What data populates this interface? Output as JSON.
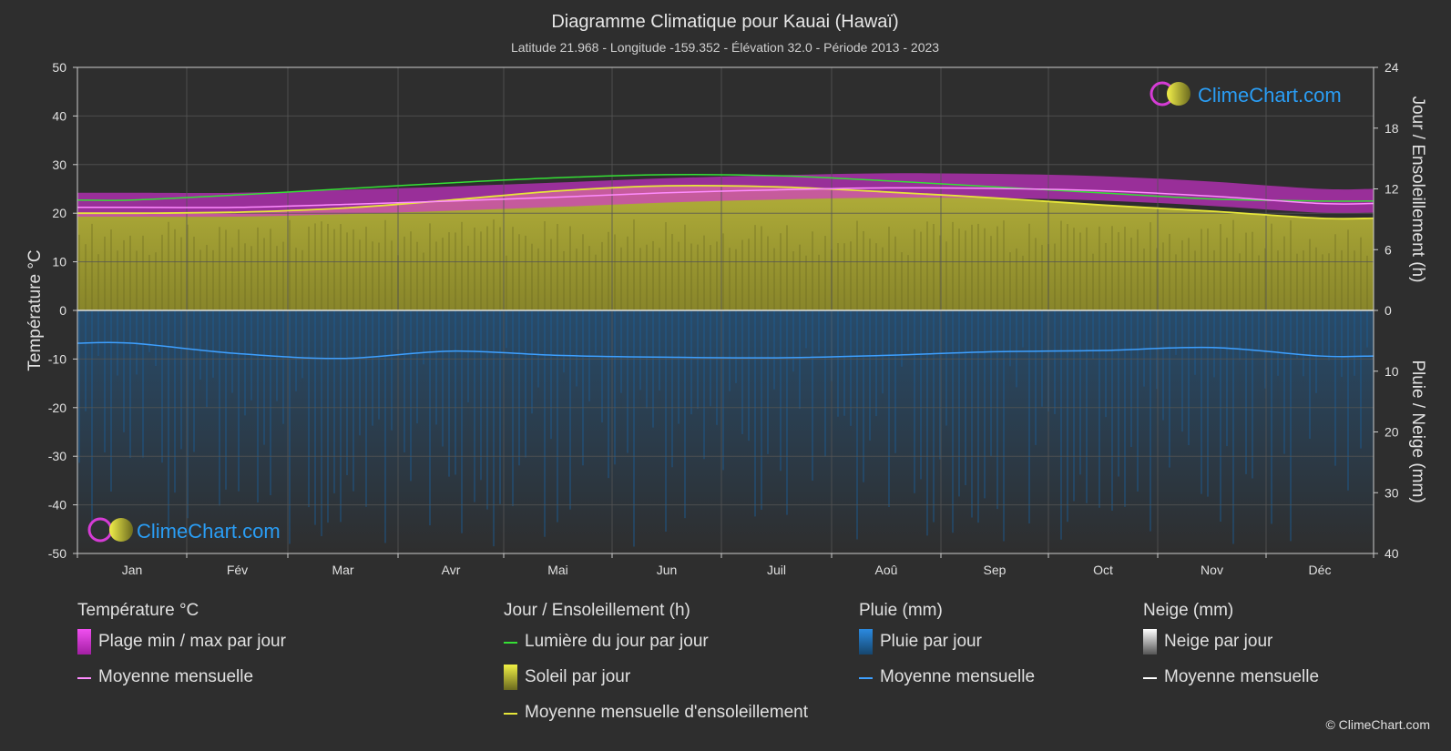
{
  "title": "Diagramme Climatique pour Kauai (Hawaï)",
  "subtitle": "Latitude 21.968 - Longitude -159.352 - Élévation 32.0 - Période 2013 - 2023",
  "watermark": "ClimeChart.com",
  "copyright": "© ClimeChart.com",
  "chart_data": {
    "type": "area",
    "categories": [
      "Jan",
      "Fév",
      "Mar",
      "Avr",
      "Mai",
      "Jun",
      "Juil",
      "Aoû",
      "Sep",
      "Oct",
      "Nov",
      "Déc"
    ],
    "y_left": {
      "label": "Température °C",
      "ylim": [
        -50,
        50
      ],
      "ticks": [
        50,
        40,
        30,
        20,
        10,
        0,
        -10,
        -20,
        -30,
        -40,
        -50
      ]
    },
    "y_right_top": {
      "label": "Jour / Ensoleillement (h)",
      "ylim": [
        0,
        24
      ],
      "ticks": [
        24,
        18,
        12,
        6,
        0
      ]
    },
    "y_right_bottom": {
      "label": "Pluie / Neige (mm)",
      "ylim": [
        0,
        40
      ],
      "ticks": [
        0,
        10,
        20,
        30,
        40
      ]
    },
    "grid": true,
    "series": [
      {
        "name": "Lumière du jour par jour",
        "unit": "h",
        "values": [
          10.9,
          11.4,
          12.0,
          12.6,
          13.1,
          13.4,
          13.3,
          12.8,
          12.2,
          11.6,
          11.0,
          10.8
        ]
      },
      {
        "name": "Moyenne mensuelle d'ensoleillement",
        "unit": "h",
        "values": [
          9.6,
          9.7,
          10.1,
          10.9,
          11.8,
          12.3,
          12.2,
          11.7,
          11.1,
          10.4,
          9.8,
          9.1
        ]
      },
      {
        "name": "Moyenne mensuelle",
        "kind": "temperature",
        "unit": "°C",
        "values": [
          21.2,
          21.2,
          21.8,
          22.5,
          23.3,
          24.2,
          24.8,
          25.2,
          25.1,
          24.6,
          23.5,
          22.0
        ]
      },
      {
        "name": "Plage min / max par jour",
        "kind": "temperature-range",
        "unit": "°C",
        "min": [
          19.3,
          19.3,
          19.8,
          20.5,
          21.3,
          22.2,
          22.8,
          23.2,
          23.1,
          22.6,
          21.5,
          20.1
        ],
        "max": [
          24.2,
          24.2,
          24.8,
          25.5,
          26.3,
          27.2,
          27.8,
          28.2,
          28.1,
          27.6,
          26.5,
          25.0
        ]
      },
      {
        "name": "Moyenne mensuelle",
        "kind": "rain",
        "unit": "mm",
        "values": [
          5.4,
          7.1,
          7.9,
          6.7,
          7.4,
          7.7,
          7.8,
          7.4,
          6.8,
          6.6,
          6.1,
          7.5
        ]
      },
      {
        "name": "Soleil par jour",
        "kind": "sunshine-daily",
        "unit": "h"
      },
      {
        "name": "Pluie par jour",
        "kind": "rain-daily",
        "unit": "mm"
      }
    ],
    "colors": {
      "background": "#2e2e2e",
      "daylight": "#35e035",
      "sunshine_line": "#e6e63a",
      "sunshine_fill": "#a9a62f",
      "temp_range": "#d22fd2",
      "temp_mean": "#ff8cff",
      "rain": "#1f6fb5",
      "rain_line": "#3ea0ff",
      "snow": "#ffffff",
      "grid": "#555555",
      "watermark_text": "#2a9df4"
    }
  },
  "legend": {
    "temperature": {
      "heading": "Température °C",
      "items": [
        {
          "label": "Plage min / max par jour",
          "swatch": "box",
          "color": "#d22fd2"
        },
        {
          "label": "Moyenne mensuelle",
          "swatch": "line",
          "color": "#ff8cff"
        }
      ]
    },
    "sun": {
      "heading": "Jour / Ensoleillement (h)",
      "items": [
        {
          "label": "Lumière du jour par jour",
          "swatch": "line",
          "color": "#35e035"
        },
        {
          "label": "Soleil par jour",
          "swatch": "box",
          "color": "#c8c83a"
        },
        {
          "label": "Moyenne mensuelle d'ensoleillement",
          "swatch": "line",
          "color": "#e6e63a"
        }
      ]
    },
    "rain": {
      "heading": "Pluie (mm)",
      "items": [
        {
          "label": "Pluie par jour",
          "swatch": "box",
          "color": "#1f6fb5"
        },
        {
          "label": "Moyenne mensuelle",
          "swatch": "line",
          "color": "#3ea0ff"
        }
      ]
    },
    "snow": {
      "heading": "Neige (mm)",
      "items": [
        {
          "label": "Neige par jour",
          "swatch": "box",
          "color": "#dddddd"
        },
        {
          "label": "Moyenne mensuelle",
          "swatch": "line",
          "color": "#ffffff"
        }
      ]
    }
  }
}
